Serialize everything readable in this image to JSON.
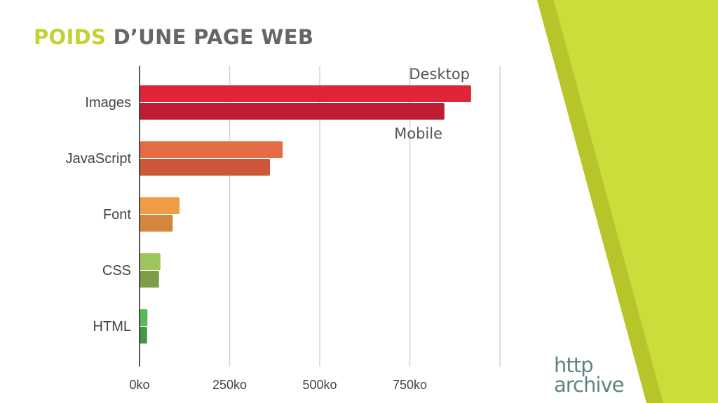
{
  "title": {
    "highlight": "POIDS",
    "rest": "D’UNE PAGE WEB"
  },
  "colors": {
    "accent": "#c4d12f",
    "accent_dark": "#b7c52a",
    "title_gray": "#666666",
    "grid": "#d4d4d4",
    "text": "#444444"
  },
  "logo": {
    "line1": "http",
    "line2": "archive"
  },
  "chart_data": {
    "type": "bar",
    "orientation": "horizontal",
    "categories": [
      "Images",
      "JavaScript",
      "Font",
      "CSS",
      "HTML"
    ],
    "series": [
      {
        "name": "Desktop",
        "values": [
          920,
          397,
          111,
          58,
          22
        ]
      },
      {
        "name": "Mobile",
        "values": [
          846,
          362,
          92,
          54,
          21
        ]
      }
    ],
    "colors": [
      [
        "#de253a",
        "#bf1d33"
      ],
      [
        "#e46b43",
        "#cc5839"
      ],
      [
        "#ef9c45",
        "#d4863e"
      ],
      [
        "#9dc55b",
        "#7d9e47"
      ],
      [
        "#5cb759",
        "#459648"
      ]
    ],
    "xticks": [
      "0ko",
      "250ko",
      "500ko",
      "750ko"
    ],
    "xtick_values": [
      0,
      250,
      500,
      750
    ],
    "xlim": [
      0,
      1000
    ],
    "grid": true,
    "title": "",
    "xlabel": "",
    "ylabel": ""
  }
}
